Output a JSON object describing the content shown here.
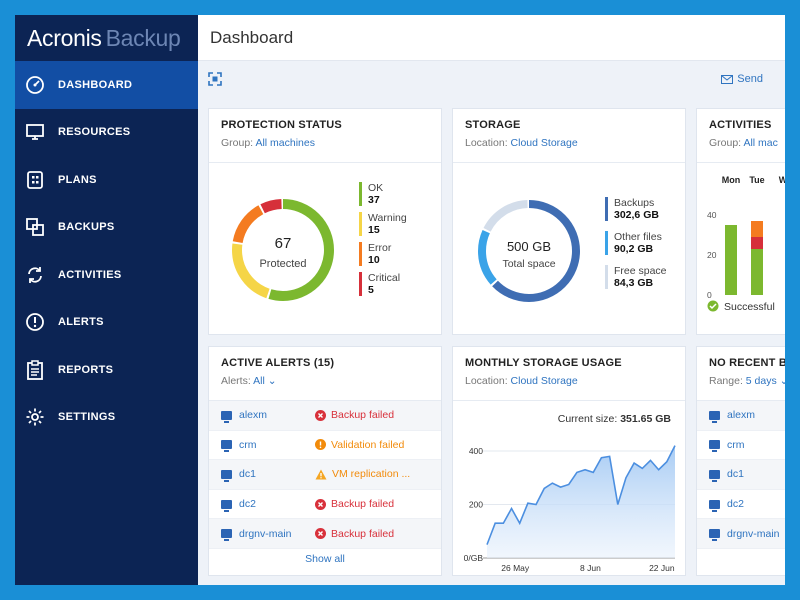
{
  "brand": {
    "name": "Acronis",
    "product": "Backup"
  },
  "sidebar": {
    "items": [
      {
        "label": "DASHBOARD",
        "icon": "gauge-icon",
        "active": true
      },
      {
        "label": "RESOURCES",
        "icon": "monitor-icon"
      },
      {
        "label": "PLANS",
        "icon": "plans-icon"
      },
      {
        "label": "BACKUPS",
        "icon": "copy-icon"
      },
      {
        "label": "ACTIVITIES",
        "icon": "sync-icon"
      },
      {
        "label": "ALERTS",
        "icon": "alert-circle-icon"
      },
      {
        "label": "REPORTS",
        "icon": "clipboard-icon"
      },
      {
        "label": "SETTINGS",
        "icon": "gear-icon"
      }
    ]
  },
  "header": {
    "title": "Dashboard"
  },
  "toolbar": {
    "send_label": "Send"
  },
  "protection": {
    "title": "PROTECTION STATUS",
    "group_prefix": "Group:",
    "group_link": "All machines",
    "total": "67",
    "total_label": "Protected",
    "legend": [
      {
        "label": "OK",
        "value": "37",
        "color": "#7cb82f"
      },
      {
        "label": "Warning",
        "value": "15",
        "color": "#f5d547"
      },
      {
        "label": "Error",
        "value": "10",
        "color": "#f47b20"
      },
      {
        "label": "Critical",
        "value": "5",
        "color": "#d6303a"
      }
    ]
  },
  "storage": {
    "title": "STORAGE",
    "location_prefix": "Location:",
    "location_link": "Cloud Storage",
    "total": "500 GB",
    "total_label": "Total space",
    "legend": [
      {
        "label": "Backups",
        "value": "302,6 GB",
        "color": "#3f6db3"
      },
      {
        "label": "Other files",
        "value": "90,2 GB",
        "color": "#3aa3e8"
      },
      {
        "label": "Free space",
        "value": "84,3 GB",
        "color": "#d3ddea"
      }
    ]
  },
  "activities": {
    "title": "ACTIVITIES",
    "group_prefix": "Group:",
    "group_link": "All mac",
    "days": [
      "Mon",
      "Tue",
      "W"
    ],
    "ticks": [
      "40",
      "20",
      "0"
    ],
    "legend_label": "Successful",
    "chart_data": {
      "type": "bar",
      "categories": [
        "Mon",
        "Tue"
      ],
      "series": [
        {
          "name": "Successful",
          "values": [
            35,
            23
          ],
          "color": "#7cb82f"
        },
        {
          "color": "#d6303a",
          "values": [
            0,
            6
          ]
        },
        {
          "color": "#f47b20",
          "values": [
            0,
            8
          ]
        }
      ],
      "ylim": [
        0,
        50
      ]
    }
  },
  "alerts": {
    "title": "ACTIVE ALERTS (15)",
    "filter_prefix": "Alerts:",
    "filter_value": "All",
    "rows": [
      {
        "machine": "alexm",
        "status": "Backup failed",
        "level": "red"
      },
      {
        "machine": "crm",
        "status": "Validation failed",
        "level": "orange"
      },
      {
        "machine": "dc1",
        "status": "VM replication ...",
        "level": "orange"
      },
      {
        "machine": "dc2",
        "status": "Backup failed",
        "level": "red"
      },
      {
        "machine": "drgnv-main",
        "status": "Backup failed",
        "level": "red"
      }
    ],
    "show_all": "Show all"
  },
  "monthly": {
    "title": "MONTHLY STORAGE USAGE",
    "location_prefix": "Location:",
    "location_link": "Cloud Storage",
    "current_prefix": "Current size:",
    "current_value": "351.65 GB",
    "chart_data": {
      "type": "area",
      "yticks": [
        "400",
        "200",
        "0/GB"
      ],
      "xticks": [
        "26 May",
        "8 Jun",
        "22 Jun"
      ],
      "ylim": [
        0,
        430
      ],
      "values": [
        50,
        130,
        130,
        185,
        130,
        205,
        200,
        260,
        280,
        265,
        275,
        320,
        330,
        320,
        375,
        380,
        200,
        300,
        355,
        335,
        365,
        330,
        360,
        420
      ],
      "line_color": "#4c8fe0"
    }
  },
  "norecent": {
    "title": "NO RECENT BA",
    "range_prefix": "Range:",
    "range_value": "5 days",
    "rows": [
      "alexm",
      "crm",
      "dc1",
      "dc2",
      "drgnv-main"
    ]
  }
}
